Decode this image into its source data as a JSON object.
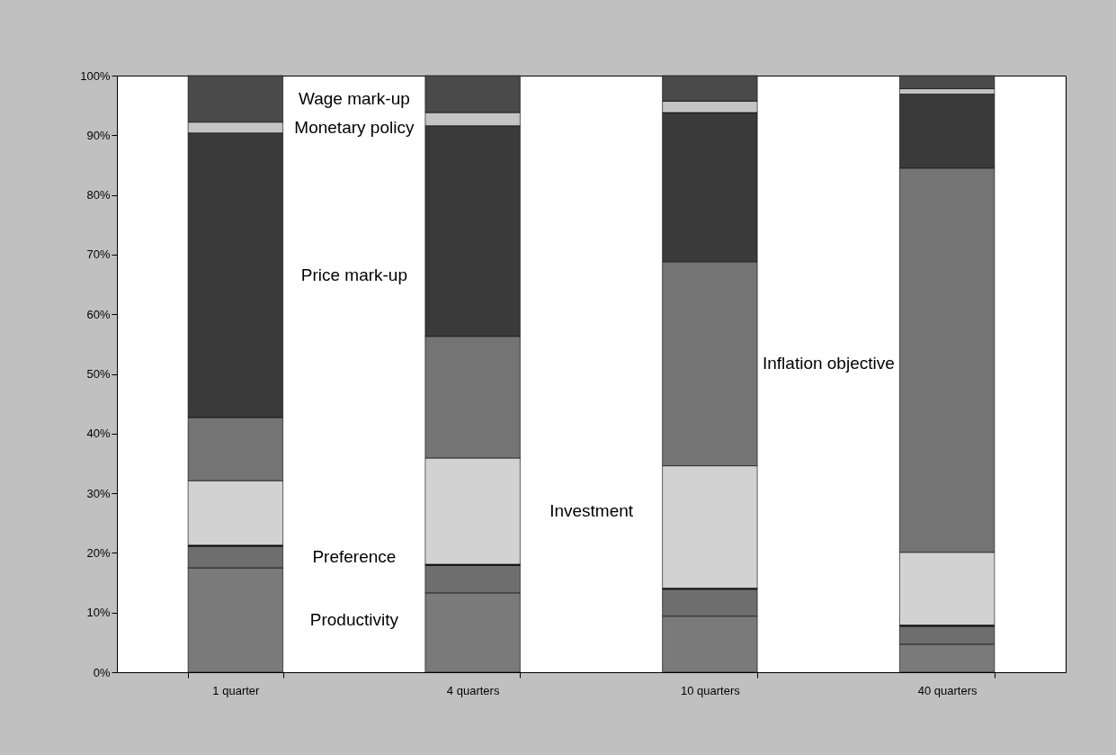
{
  "chart_data": {
    "type": "bar",
    "stacked": true,
    "categories": [
      "1 quarter",
      "4 quarters",
      "10 quarters",
      "40 quarters"
    ],
    "series": [
      {
        "name": "Productivity",
        "color": "#7a7a7a",
        "values": [
          17.5,
          13.3,
          9.4,
          4.7
        ]
      },
      {
        "name": "Preference",
        "color": "#6e6e6e",
        "values": [
          3.6,
          4.6,
          4.5,
          3.0
        ]
      },
      {
        "color": "#1a1a1a",
        "values": [
          0.2,
          0.2,
          0.2,
          0.2
        ]
      },
      {
        "name": "Investment",
        "color": "#d2d2d2",
        "values": [
          10.8,
          17.8,
          20.5,
          12.2
        ]
      },
      {
        "name": "Inflation objective",
        "color": "#747474",
        "values": [
          10.6,
          20.4,
          34.2,
          64.4
        ]
      },
      {
        "name": "Price mark-up",
        "color": "#3a3a3a",
        "values": [
          47.7,
          35.3,
          25.0,
          12.4
        ]
      },
      {
        "name": "Monetary policy",
        "color": "#c4c4c4",
        "values": [
          1.8,
          2.2,
          1.9,
          0.9
        ]
      },
      {
        "name": "Wage mark-up",
        "color": "#4a4a4a",
        "values": [
          7.8,
          6.2,
          4.3,
          2.2
        ]
      }
    ],
    "ylim": [
      0,
      100
    ],
    "yticks": [
      {
        "value": 0,
        "label": "0%"
      },
      {
        "value": 10,
        "label": "10%"
      },
      {
        "value": 20,
        "label": "20%"
      },
      {
        "value": 30,
        "label": "30%"
      },
      {
        "value": 40,
        "label": "40%"
      },
      {
        "value": 50,
        "label": "50%"
      },
      {
        "value": 60,
        "label": "60%"
      },
      {
        "value": 70,
        "label": "70%"
      },
      {
        "value": 80,
        "label": "80%"
      },
      {
        "value": 90,
        "label": "90%"
      },
      {
        "value": 100,
        "label": "100%"
      }
    ],
    "grid": false,
    "legend": false
  }
}
